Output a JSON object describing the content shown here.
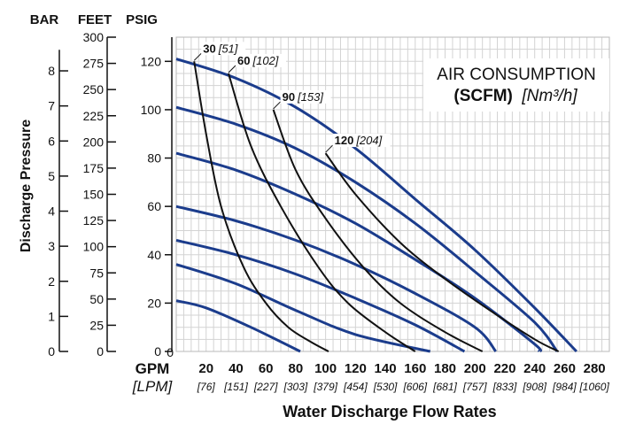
{
  "chart_data": {
    "type": "line",
    "headers": {
      "bar": "BAR",
      "feet": "FEET",
      "psig": "PSIG"
    },
    "ylabel": "Discharge Pressure",
    "xlabel": "Water Discharge Flow Rates",
    "x_unit_label": "GPM",
    "x_unit2_label": "[LPM]",
    "x_ticks": [
      20,
      40,
      60,
      80,
      100,
      120,
      140,
      160,
      180,
      200,
      220,
      240,
      260,
      280
    ],
    "x_ticks_lpm": [
      "[76]",
      "[151]",
      "[227]",
      "[303]",
      "[379]",
      "[454]",
      "[530]",
      "[606]",
      "[681]",
      "[757]",
      "[833]",
      "[908]",
      "[984]",
      "[1060]"
    ],
    "xlim": [
      0,
      290
    ],
    "ylim": [
      0,
      130
    ],
    "psig_ticks": [
      0,
      20,
      40,
      60,
      80,
      100,
      120
    ],
    "feet_ticks": [
      0,
      25,
      50,
      75,
      100,
      125,
      150,
      175,
      200,
      225,
      250,
      275,
      300
    ],
    "bar_ticks": [
      0,
      1,
      2,
      3,
      4,
      5,
      6,
      7,
      8
    ],
    "legend_box": {
      "line1": "AIR CONSUMPTION",
      "line2_bold": "(SCFM)",
      "line2_italic": "[Nm³/h]"
    },
    "series_color": "#1b3c8c",
    "air_color": "#111111",
    "grid": true,
    "performance_curves": [
      {
        "values": [
          [
            0,
            21
          ],
          [
            20,
            18
          ],
          [
            50,
            10
          ],
          [
            83,
            0
          ]
        ]
      },
      {
        "values": [
          [
            0,
            36
          ],
          [
            40,
            28
          ],
          [
            80,
            17
          ],
          [
            120,
            7
          ],
          [
            170,
            0
          ]
        ]
      },
      {
        "values": [
          [
            0,
            46
          ],
          [
            40,
            40
          ],
          [
            80,
            32
          ],
          [
            120,
            22
          ],
          [
            160,
            11
          ],
          [
            193,
            0
          ]
        ]
      },
      {
        "values": [
          [
            0,
            60
          ],
          [
            40,
            54
          ],
          [
            80,
            46
          ],
          [
            120,
            36
          ],
          [
            160,
            24
          ],
          [
            200,
            10
          ],
          [
            214,
            0
          ]
        ]
      },
      {
        "values": [
          [
            0,
            82
          ],
          [
            40,
            75
          ],
          [
            80,
            65
          ],
          [
            120,
            53
          ],
          [
            160,
            38
          ],
          [
            200,
            22
          ],
          [
            240,
            3
          ],
          [
            243,
            0
          ]
        ]
      },
      {
        "values": [
          [
            0,
            101
          ],
          [
            40,
            94
          ],
          [
            80,
            84
          ],
          [
            120,
            70
          ],
          [
            160,
            53
          ],
          [
            200,
            33
          ],
          [
            240,
            12
          ],
          [
            255,
            0
          ]
        ]
      },
      {
        "values": [
          [
            0,
            121
          ],
          [
            40,
            113
          ],
          [
            80,
            101
          ],
          [
            120,
            84
          ],
          [
            160,
            63
          ],
          [
            200,
            42
          ],
          [
            240,
            18
          ],
          [
            268,
            0
          ]
        ]
      }
    ],
    "air_curves": [
      {
        "label": "30",
        "label_nm": "[51]",
        "values": [
          [
            12,
            120
          ],
          [
            20,
            90
          ],
          [
            30,
            60
          ],
          [
            45,
            35
          ],
          [
            60,
            20
          ],
          [
            75,
            10
          ],
          [
            90,
            4
          ],
          [
            102,
            0
          ]
        ]
      },
      {
        "label": "60",
        "label_nm": "[102]",
        "values": [
          [
            35,
            115
          ],
          [
            50,
            85
          ],
          [
            70,
            60
          ],
          [
            95,
            35
          ],
          [
            115,
            20
          ],
          [
            140,
            8
          ],
          [
            160,
            0
          ]
        ]
      },
      {
        "label": "90",
        "label_nm": "[153]",
        "values": [
          [
            65,
            100
          ],
          [
            80,
            75
          ],
          [
            100,
            55
          ],
          [
            125,
            35
          ],
          [
            150,
            20
          ],
          [
            180,
            8
          ],
          [
            205,
            0
          ]
        ]
      },
      {
        "label": "120",
        "label_nm": "[204]",
        "values": [
          [
            100,
            82
          ],
          [
            120,
            65
          ],
          [
            150,
            45
          ],
          [
            180,
            30
          ],
          [
            210,
            17
          ],
          [
            240,
            5
          ],
          [
            256,
            0
          ]
        ]
      }
    ]
  }
}
